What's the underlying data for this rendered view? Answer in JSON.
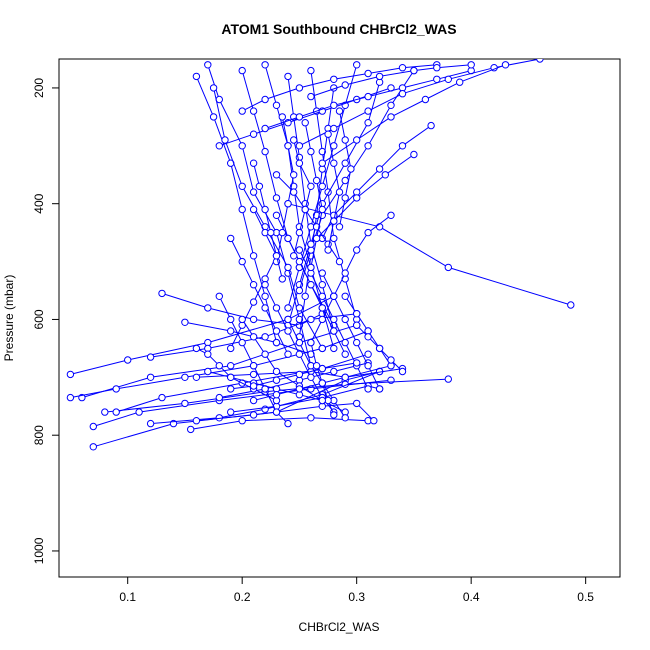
{
  "chart_data": {
    "type": "line",
    "title": "ATOM1 Southbound CHBrCl2_WAS",
    "xlabel": "CHBrCl2_WAS",
    "ylabel": "Pressure (mbar)",
    "xlim": [
      0.04,
      0.53
    ],
    "ylim": [
      1045,
      150
    ],
    "y_reversed": true,
    "x_ticks": [
      0.1,
      0.2,
      0.3,
      0.4,
      0.5
    ],
    "x_tick_labels": [
      "0.1",
      "0.2",
      "0.3",
      "0.4",
      "0.5"
    ],
    "y_ticks": [
      200,
      400,
      600,
      800,
      1000
    ],
    "y_tick_labels": [
      "200",
      "400",
      "600",
      "800",
      "1000"
    ],
    "grid": false,
    "legend": "none",
    "series_color": "#0000ff",
    "marker": "open-circle",
    "series": [
      {
        "x": [
          0.07,
          0.14,
          0.23,
          0.29,
          0.32
        ],
        "y": [
          820,
          780,
          760,
          705,
          690
        ]
      },
      {
        "x": [
          0.06,
          0.12,
          0.19,
          0.25,
          0.3
        ],
        "y": [
          735,
          700,
          680,
          640,
          610
        ]
      },
      {
        "x": [
          0.05,
          0.1,
          0.17,
          0.24,
          0.28
        ],
        "y": [
          695,
          670,
          640,
          600,
          560
        ]
      },
      {
        "x": [
          0.05,
          0.09,
          0.15,
          0.21,
          0.27,
          0.31
        ],
        "y": [
          735,
          720,
          700,
          680,
          650,
          620
        ]
      },
      {
        "x": [
          0.07,
          0.11,
          0.18,
          0.26,
          0.33
        ],
        "y": [
          785,
          760,
          740,
          720,
          705
        ]
      },
      {
        "x": [
          0.08,
          0.15,
          0.22,
          0.29,
          0.38
        ],
        "y": [
          760,
          745,
          725,
          712,
          703
        ]
      },
      {
        "x": [
          0.09,
          0.13,
          0.2,
          0.27,
          0.31
        ],
        "y": [
          760,
          735,
          710,
          685,
          660
        ]
      },
      {
        "x": [
          0.12,
          0.18,
          0.22,
          0.27,
          0.32
        ],
        "y": [
          780,
          770,
          755,
          730,
          690
        ]
      },
      {
        "x": [
          0.155,
          0.2,
          0.26,
          0.31
        ],
        "y": [
          790,
          775,
          770,
          775
        ]
      },
      {
        "x": [
          0.16,
          0.21,
          0.27,
          0.3,
          0.315
        ],
        "y": [
          775,
          765,
          750,
          745,
          775
        ]
      },
      {
        "x": [
          0.13,
          0.17,
          0.21,
          0.25,
          0.27
        ],
        "y": [
          555,
          580,
          600,
          610,
          590
        ]
      },
      {
        "x": [
          0.15,
          0.19,
          0.23,
          0.26
        ],
        "y": [
          605,
          620,
          640,
          660
        ]
      },
      {
        "x": [
          0.12,
          0.17,
          0.22,
          0.26,
          0.3
        ],
        "y": [
          665,
          650,
          630,
          600,
          590
        ]
      },
      {
        "x": [
          0.16,
          0.21,
          0.26,
          0.29,
          0.34
        ],
        "y": [
          700,
          695,
          690,
          700,
          685
        ]
      },
      {
        "x": [
          0.18,
          0.22,
          0.25,
          0.28,
          0.31
        ],
        "y": [
          735,
          720,
          705,
          690,
          675
        ]
      },
      {
        "x": [
          0.19,
          0.23,
          0.27,
          0.31,
          0.32
        ],
        "y": [
          760,
          750,
          735,
          715,
          720
        ]
      },
      {
        "x": [
          0.24,
          0.32,
          0.38,
          0.487
        ],
        "y": [
          400,
          440,
          510,
          575
        ]
      },
      {
        "x": [
          0.17,
          0.18,
          0.2,
          0.21,
          0.23,
          0.24,
          0.25,
          0.26
        ],
        "y": [
          160,
          220,
          300,
          380,
          450,
          520,
          600,
          680
        ]
      },
      {
        "x": [
          0.16,
          0.175,
          0.19,
          0.2,
          0.21,
          0.22,
          0.23
        ],
        "y": [
          180,
          250,
          330,
          410,
          490,
          560,
          640
        ]
      },
      {
        "x": [
          0.175,
          0.185,
          0.2,
          0.22,
          0.24,
          0.25,
          0.27
        ],
        "y": [
          200,
          290,
          370,
          440,
          510,
          580,
          650
        ]
      },
      {
        "x": [
          0.2,
          0.21,
          0.22,
          0.23,
          0.24,
          0.26,
          0.28
        ],
        "y": [
          170,
          240,
          310,
          390,
          460,
          540,
          610
        ]
      },
      {
        "x": [
          0.22,
          0.23,
          0.24,
          0.245,
          0.25,
          0.26,
          0.27,
          0.28
        ],
        "y": [
          160,
          230,
          300,
          370,
          440,
          510,
          580,
          650
        ]
      },
      {
        "x": [
          0.24,
          0.245,
          0.25,
          0.255,
          0.26,
          0.27,
          0.28
        ],
        "y": [
          180,
          250,
          320,
          400,
          470,
          540,
          620
        ]
      },
      {
        "x": [
          0.26,
          0.265,
          0.27,
          0.275,
          0.28,
          0.29,
          0.3
        ],
        "y": [
          170,
          240,
          310,
          380,
          460,
          530,
          600
        ]
      },
      {
        "x": [
          0.28,
          0.275,
          0.27,
          0.265,
          0.26,
          0.255,
          0.25
        ],
        "y": [
          200,
          270,
          340,
          420,
          490,
          560,
          630
        ]
      },
      {
        "x": [
          0.3,
          0.29,
          0.28,
          0.27,
          0.26,
          0.25,
          0.24
        ],
        "y": [
          160,
          230,
          300,
          370,
          440,
          510,
          580
        ]
      },
      {
        "x": [
          0.32,
          0.31,
          0.29,
          0.27,
          0.26,
          0.25,
          0.24
        ],
        "y": [
          190,
          260,
          330,
          400,
          470,
          540,
          610
        ]
      },
      {
        "x": [
          0.35,
          0.33,
          0.31,
          0.29,
          0.27,
          0.26,
          0.25
        ],
        "y": [
          170,
          230,
          300,
          360,
          420,
          480,
          550
        ]
      },
      {
        "x": [
          0.365,
          0.34,
          0.32,
          0.3,
          0.28,
          0.27
        ],
        "y": [
          265,
          300,
          340,
          380,
          420,
          460
        ]
      },
      {
        "x": [
          0.35,
          0.325,
          0.3,
          0.28,
          0.26,
          0.25
        ],
        "y": [
          315,
          350,
          390,
          430,
          470,
          510
        ]
      },
      {
        "x": [
          0.33,
          0.31,
          0.3,
          0.29,
          0.28,
          0.27,
          0.26
        ],
        "y": [
          420,
          450,
          480,
          520,
          560,
          600,
          640
        ]
      },
      {
        "x": [
          0.2,
          0.22,
          0.25,
          0.28,
          0.31,
          0.34,
          0.37
        ],
        "y": [
          240,
          220,
          200,
          185,
          175,
          165,
          160
        ]
      },
      {
        "x": [
          0.18,
          0.21,
          0.24,
          0.27,
          0.3,
          0.33
        ],
        "y": [
          300,
          280,
          260,
          240,
          220,
          200
        ]
      },
      {
        "x": [
          0.22,
          0.25,
          0.28,
          0.31,
          0.34,
          0.37,
          0.4
        ],
        "y": [
          270,
          250,
          230,
          215,
          200,
          185,
          170
        ]
      },
      {
        "x": [
          0.25,
          0.28,
          0.31,
          0.34,
          0.38,
          0.42,
          0.46
        ],
        "y": [
          300,
          270,
          240,
          210,
          185,
          165,
          150
        ]
      },
      {
        "x": [
          0.27,
          0.3,
          0.33,
          0.36,
          0.39,
          0.43
        ],
        "y": [
          330,
          290,
          250,
          220,
          190,
          160
        ]
      },
      {
        "x": [
          0.26,
          0.29,
          0.32,
          0.35,
          0.37,
          0.4
        ],
        "y": [
          215,
          195,
          180,
          170,
          165,
          160
        ]
      },
      {
        "x": [
          0.21,
          0.22,
          0.23,
          0.22,
          0.21,
          0.2,
          0.19
        ],
        "y": [
          410,
          450,
          490,
          530,
          570,
          610,
          650
        ]
      },
      {
        "x": [
          0.19,
          0.2,
          0.21,
          0.22,
          0.23,
          0.24
        ],
        "y": [
          460,
          500,
          540,
          580,
          620,
          660
        ]
      },
      {
        "x": [
          0.23,
          0.24,
          0.25,
          0.26,
          0.27,
          0.28,
          0.29
        ],
        "y": [
          420,
          460,
          500,
          540,
          580,
          620,
          660
        ]
      },
      {
        "x": [
          0.25,
          0.26,
          0.27,
          0.28,
          0.29,
          0.3,
          0.31
        ],
        "y": [
          480,
          520,
          560,
          600,
          640,
          680,
          720
        ]
      },
      {
        "x": [
          0.27,
          0.28,
          0.29,
          0.3,
          0.31,
          0.32
        ],
        "y": [
          520,
          560,
          600,
          640,
          680,
          720
        ]
      },
      {
        "x": [
          0.18,
          0.19,
          0.2,
          0.21,
          0.22,
          0.23,
          0.24
        ],
        "y": [
          560,
          600,
          640,
          680,
          720,
          760,
          780
        ]
      },
      {
        "x": [
          0.2,
          0.21,
          0.22,
          0.23,
          0.25,
          0.27,
          0.29
        ],
        "y": [
          600,
          630,
          660,
          690,
          715,
          740,
          760
        ]
      },
      {
        "x": [
          0.22,
          0.23,
          0.24,
          0.25,
          0.26,
          0.27,
          0.28
        ],
        "y": [
          540,
          580,
          620,
          660,
          700,
          735,
          760
        ]
      },
      {
        "x": [
          0.24,
          0.25,
          0.26,
          0.27,
          0.28,
          0.29
        ],
        "y": [
          600,
          640,
          680,
          710,
          740,
          770
        ]
      },
      {
        "x": [
          0.26,
          0.265,
          0.27,
          0.275,
          0.28
        ],
        "y": [
          640,
          680,
          710,
          740,
          765
        ]
      },
      {
        "x": [
          0.16,
          0.17,
          0.18,
          0.19,
          0.21,
          0.23
        ],
        "y": [
          650,
          660,
          680,
          700,
          720,
          740
        ]
      },
      {
        "x": [
          0.17,
          0.19,
          0.21,
          0.23,
          0.25,
          0.27
        ],
        "y": [
          690,
          700,
          710,
          720,
          730,
          740
        ]
      },
      {
        "x": [
          0.19,
          0.21,
          0.23,
          0.25,
          0.27,
          0.3
        ],
        "y": [
          720,
          715,
          705,
          695,
          685,
          675
        ]
      },
      {
        "x": [
          0.21,
          0.23,
          0.25,
          0.27,
          0.29,
          0.33
        ],
        "y": [
          740,
          730,
          720,
          710,
          700,
          680
        ]
      },
      {
        "x": [
          0.23,
          0.245,
          0.255,
          0.265,
          0.275,
          0.285
        ],
        "y": [
          350,
          380,
          410,
          440,
          470,
          500
        ]
      },
      {
        "x": [
          0.245,
          0.25,
          0.26,
          0.255,
          0.25,
          0.245
        ],
        "y": [
          290,
          330,
          370,
          410,
          450,
          490
        ]
      },
      {
        "x": [
          0.235,
          0.24,
          0.245,
          0.24,
          0.235,
          0.23
        ],
        "y": [
          250,
          300,
          350,
          400,
          450,
          500
        ]
      },
      {
        "x": [
          0.255,
          0.26,
          0.265,
          0.27,
          0.265,
          0.26
        ],
        "y": [
          260,
          310,
          360,
          410,
          460,
          510
        ]
      },
      {
        "x": [
          0.275,
          0.28,
          0.285,
          0.28,
          0.275
        ],
        "y": [
          280,
          330,
          380,
          430,
          480
        ]
      },
      {
        "x": [
          0.21,
          0.215,
          0.22,
          0.225,
          0.23,
          0.235
        ],
        "y": [
          330,
          370,
          410,
          450,
          490,
          530
        ]
      },
      {
        "x": [
          0.285,
          0.29,
          0.295,
          0.29,
          0.285
        ],
        "y": [
          240,
          290,
          340,
          390,
          440
        ]
      },
      {
        "x": [
          0.29,
          0.3,
          0.31,
          0.32,
          0.33
        ],
        "y": [
          560,
          590,
          620,
          650,
          680
        ]
      },
      {
        "x": [
          0.3,
          0.31,
          0.32,
          0.33,
          0.34
        ],
        "y": [
          610,
          630,
          650,
          670,
          690
        ]
      }
    ]
  }
}
